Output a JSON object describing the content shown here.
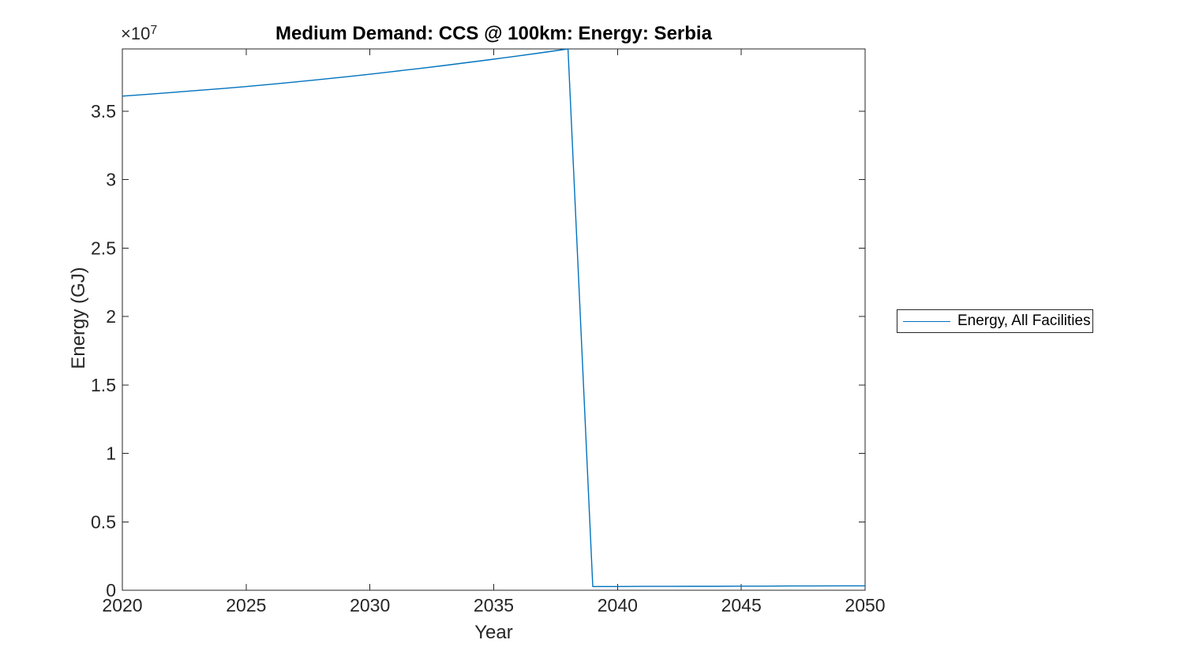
{
  "figure": {
    "title": "Medium Demand: CCS @ 100km: Energy: Serbia",
    "xlabel": "Year",
    "ylabel": "Energy (GJ)",
    "y_offset_text": "×10",
    "y_offset_exponent": "7",
    "legend": {
      "entries": [
        {
          "label": "Energy, All Facilities",
          "color": "#0072BD"
        }
      ]
    }
  },
  "colors": {
    "line": "#0072BD",
    "axis": "#262626",
    "title_text": "#000000",
    "background": "#ffffff"
  },
  "chart_data": {
    "type": "line",
    "title": "Medium Demand: CCS @ 100km: Energy: Serbia",
    "xlabel": "Year",
    "ylabel": "Energy (GJ)",
    "grid": false,
    "legend_position": "outside-right",
    "xlim": [
      2020,
      2050
    ],
    "ylim": [
      0,
      39550000
    ],
    "x_ticks": [
      2020,
      2025,
      2030,
      2035,
      2040,
      2045,
      2050
    ],
    "y_ticks": [
      0,
      5000000,
      10000000,
      15000000,
      20000000,
      25000000,
      30000000,
      35000000
    ],
    "y_tick_labels": [
      "0",
      "0.5",
      "1",
      "1.5",
      "2",
      "2.5",
      "3",
      "3.5"
    ],
    "y_axis_multiplier": "1e7",
    "series": [
      {
        "name": "Energy, All Facilities",
        "color": "#0072BD",
        "x": [
          2020,
          2021,
          2022,
          2023,
          2024,
          2025,
          2026,
          2027,
          2028,
          2029,
          2030,
          2031,
          2032,
          2033,
          2034,
          2035,
          2036,
          2037,
          2038,
          2039,
          2040,
          2041,
          2042,
          2043,
          2044,
          2045,
          2046,
          2047,
          2048,
          2049,
          2050
        ],
        "y": [
          36100000,
          36230000,
          36370000,
          36510000,
          36650000,
          36800000,
          36970000,
          37140000,
          37320000,
          37510000,
          37700000,
          37910000,
          38120000,
          38340000,
          38570000,
          38800000,
          39040000,
          39290000,
          39550000,
          270000,
          270000,
          280000,
          280000,
          290000,
          290000,
          300000,
          300000,
          310000,
          310000,
          320000,
          320000
        ]
      }
    ]
  }
}
